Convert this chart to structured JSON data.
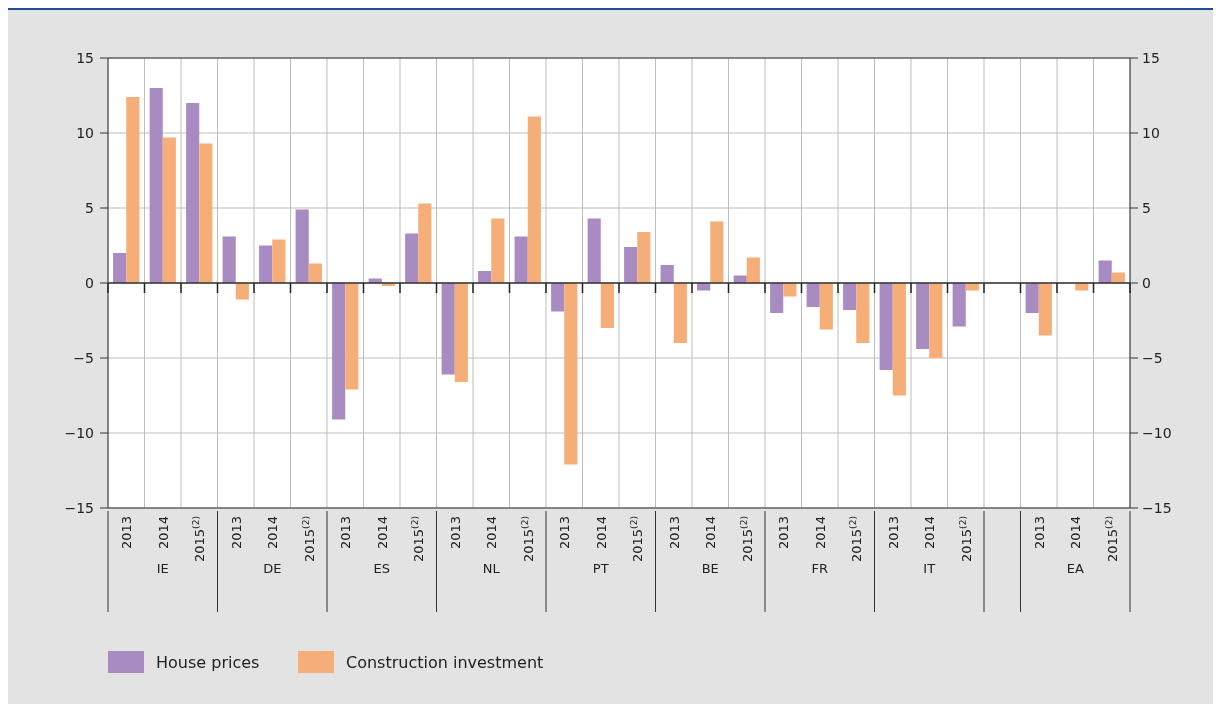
{
  "chart_data": {
    "type": "bar",
    "categories": [
      "2013",
      "2014",
      "2015$^{(2)}$",
      "2013",
      "2014",
      "2015$^{(2)}$",
      "2013",
      "2014",
      "2015$^{(2)}$",
      "2013",
      "2014",
      "2015$^{(2)}$",
      "2013",
      "2014",
      "2015$^{(2)}$",
      "2013",
      "2014",
      "2015$^{(2)}$",
      "2013",
      "2014",
      "2015$^{(2)}$",
      "2013",
      "2014",
      "2015$^{(2)}$",
      null,
      "2013",
      "2014",
      "2015$^{(2)}$"
    ],
    "series": [
      {
        "name": "House prices",
        "color": "#a88bc1",
        "values": [
          2.0,
          13.0,
          12.0,
          3.1,
          2.5,
          4.9,
          -9.1,
          0.3,
          3.3,
          -6.1,
          0.8,
          3.1,
          -1.9,
          4.3,
          2.4,
          1.2,
          -0.5,
          0.5,
          -2.0,
          -1.6,
          -1.8,
          -5.8,
          -4.4,
          -2.9,
          null,
          -2.0,
          null,
          1.5
        ]
      },
      {
        "name": "Construction investment",
        "color": "#f5ae78",
        "values": [
          12.4,
          9.7,
          9.3,
          -1.1,
          2.9,
          1.3,
          -7.1,
          -0.2,
          5.3,
          -6.6,
          4.3,
          11.1,
          -12.1,
          -3.0,
          3.4,
          -4.0,
          4.1,
          1.7,
          -0.9,
          -3.1,
          -4.0,
          -7.5,
          -5.0,
          -0.5,
          null,
          -3.5,
          -0.5,
          0.7
        ]
      }
    ],
    "annotations": [
      "IE",
      "DE",
      "ES",
      "NL",
      "PT",
      "BE",
      "FR",
      "IT",
      "EA"
    ],
    "ylim": [
      -15,
      15
    ],
    "yticks": [
      {
        "value": -15,
        "label": "−15"
      },
      {
        "value": -10,
        "label": "−10"
      },
      {
        "value": -5,
        "label": "−5"
      },
      0,
      5,
      10,
      15
    ],
    "y2lim": [
      -15,
      15
    ],
    "y2ticks": [
      {
        "value": -15,
        "label": "−15"
      },
      {
        "value": -10,
        "label": "−10"
      },
      {
        "value": -5,
        "label": "−5"
      },
      0,
      5,
      10,
      15
    ],
    "grid": true,
    "legend": "bottom left"
  }
}
